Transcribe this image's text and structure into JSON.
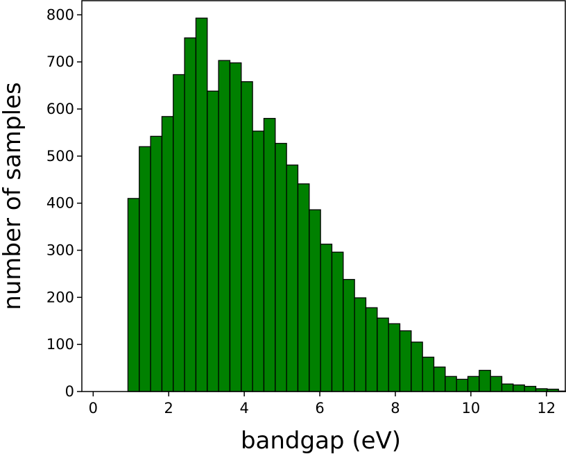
{
  "chart_data": {
    "type": "bar",
    "title": "",
    "xlabel": "bandgap (eV)",
    "ylabel": "number of samples",
    "xlim": [
      -0.3,
      12.5
    ],
    "ylim": [
      0,
      830
    ],
    "xticks": [
      0,
      2,
      4,
      6,
      8,
      10,
      12
    ],
    "yticks": [
      0,
      100,
      200,
      300,
      400,
      500,
      600,
      700,
      800
    ],
    "grid": false,
    "legend": "none",
    "bar_color": "#008000",
    "edge_color": "#000000",
    "bin_edges": [
      0.92,
      1.22,
      1.52,
      1.82,
      2.12,
      2.42,
      2.72,
      3.02,
      3.32,
      3.62,
      3.92,
      4.22,
      4.52,
      4.82,
      5.12,
      5.42,
      5.72,
      6.02,
      6.32,
      6.62,
      6.92,
      7.22,
      7.52,
      7.82,
      8.12,
      8.42,
      8.72,
      9.02,
      9.32,
      9.62,
      9.92,
      10.22,
      10.52,
      10.82,
      11.12,
      11.42,
      11.72,
      12.02,
      12.32,
      12.62
    ],
    "values": [
      410,
      520,
      542,
      584,
      673,
      751,
      793,
      638,
      703,
      698,
      658,
      553,
      580,
      527,
      481,
      441,
      386,
      313,
      296,
      238,
      199,
      178,
      156,
      144,
      129,
      105,
      73,
      52,
      32,
      26,
      32,
      45,
      32,
      16,
      14,
      11,
      6,
      5,
      1
    ]
  }
}
